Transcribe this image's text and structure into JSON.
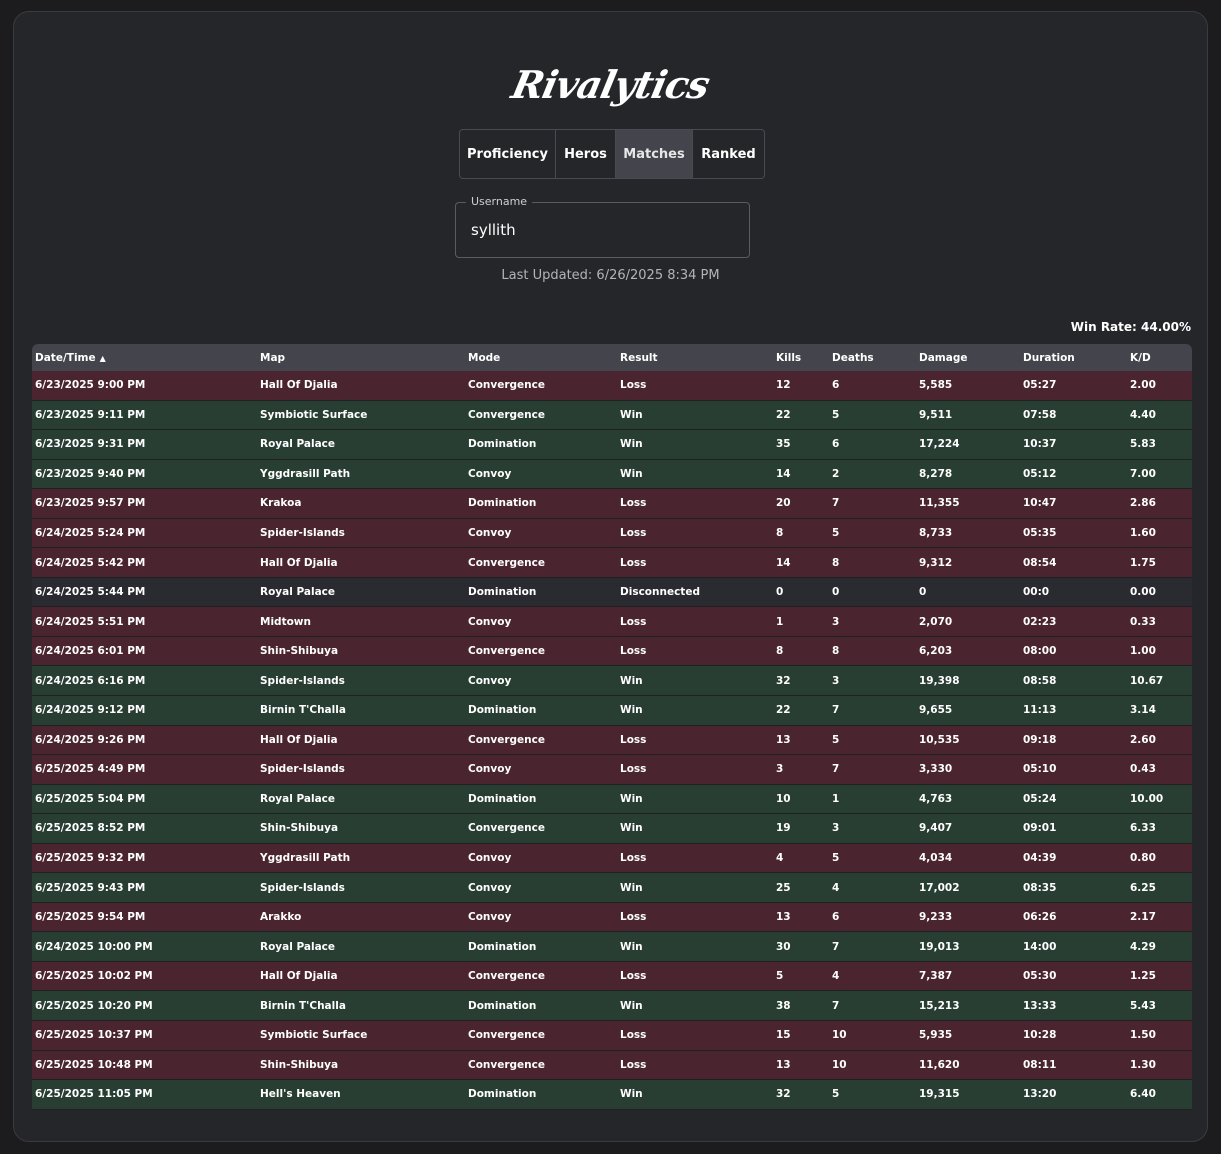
{
  "app": {
    "logo": "Rivalytics"
  },
  "tabs": [
    {
      "label": "Proficiency",
      "active": false
    },
    {
      "label": "Heros",
      "active": false
    },
    {
      "label": "Matches",
      "active": true
    },
    {
      "label": "Ranked",
      "active": false
    }
  ],
  "username": {
    "label": "Username",
    "value": "syllith"
  },
  "last_updated": "Last Updated: 6/26/2025 8:34 PM",
  "win_rate": "Win Rate: 44.00%",
  "table": {
    "headers": [
      "Date/Time",
      "Map",
      "Mode",
      "Result",
      "Kills",
      "Deaths",
      "Damage",
      "Duration",
      "K/D"
    ],
    "sort_indicator": "▲",
    "rows": [
      [
        "6/23/2025 9:00 PM",
        "Hall Of Djalia",
        "Convergence",
        "Loss",
        "12",
        "6",
        "5,585",
        "05:27",
        "2.00"
      ],
      [
        "6/23/2025 9:11 PM",
        "Symbiotic Surface",
        "Convergence",
        "Win",
        "22",
        "5",
        "9,511",
        "07:58",
        "4.40"
      ],
      [
        "6/23/2025 9:31 PM",
        "Royal Palace",
        "Domination",
        "Win",
        "35",
        "6",
        "17,224",
        "10:37",
        "5.83"
      ],
      [
        "6/23/2025 9:40 PM",
        "Yggdrasill Path",
        "Convoy",
        "Win",
        "14",
        "2",
        "8,278",
        "05:12",
        "7.00"
      ],
      [
        "6/23/2025 9:57 PM",
        "Krakoa",
        "Domination",
        "Loss",
        "20",
        "7",
        "11,355",
        "10:47",
        "2.86"
      ],
      [
        "6/24/2025 5:24 PM",
        "Spider-Islands",
        "Convoy",
        "Loss",
        "8",
        "5",
        "8,733",
        "05:35",
        "1.60"
      ],
      [
        "6/24/2025 5:42 PM",
        "Hall Of Djalia",
        "Convergence",
        "Loss",
        "14",
        "8",
        "9,312",
        "08:54",
        "1.75"
      ],
      [
        "6/24/2025 5:44 PM",
        "Royal Palace",
        "Domination",
        "Disconnected",
        "0",
        "0",
        "0",
        "00:0",
        "0.00"
      ],
      [
        "6/24/2025 5:51 PM",
        "Midtown",
        "Convoy",
        "Loss",
        "1",
        "3",
        "2,070",
        "02:23",
        "0.33"
      ],
      [
        "6/24/2025 6:01 PM",
        "Shin-Shibuya",
        "Convergence",
        "Loss",
        "8",
        "8",
        "6,203",
        "08:00",
        "1.00"
      ],
      [
        "6/24/2025 6:16 PM",
        "Spider-Islands",
        "Convoy",
        "Win",
        "32",
        "3",
        "19,398",
        "08:58",
        "10.67"
      ],
      [
        "6/24/2025 9:12 PM",
        "Birnin T'Challa",
        "Domination",
        "Win",
        "22",
        "7",
        "9,655",
        "11:13",
        "3.14"
      ],
      [
        "6/24/2025 9:26 PM",
        "Hall Of Djalia",
        "Convergence",
        "Loss",
        "13",
        "5",
        "10,535",
        "09:18",
        "2.60"
      ],
      [
        "6/25/2025 4:49 PM",
        "Spider-Islands",
        "Convoy",
        "Loss",
        "3",
        "7",
        "3,330",
        "05:10",
        "0.43"
      ],
      [
        "6/25/2025 5:04 PM",
        "Royal Palace",
        "Domination",
        "Win",
        "10",
        "1",
        "4,763",
        "05:24",
        "10.00"
      ],
      [
        "6/25/2025 8:52 PM",
        "Shin-Shibuya",
        "Convergence",
        "Win",
        "19",
        "3",
        "9,407",
        "09:01",
        "6.33"
      ],
      [
        "6/25/2025 9:32 PM",
        "Yggdrasill Path",
        "Convoy",
        "Loss",
        "4",
        "5",
        "4,034",
        "04:39",
        "0.80"
      ],
      [
        "6/25/2025 9:43 PM",
        "Spider-Islands",
        "Convoy",
        "Win",
        "25",
        "4",
        "17,002",
        "08:35",
        "6.25"
      ],
      [
        "6/25/2025 9:54 PM",
        "Arakko",
        "Convoy",
        "Loss",
        "13",
        "6",
        "9,233",
        "06:26",
        "2.17"
      ],
      [
        "6/24/2025 10:00 PM",
        "Royal Palace",
        "Domination",
        "Win",
        "30",
        "7",
        "19,013",
        "14:00",
        "4.29"
      ],
      [
        "6/25/2025 10:02 PM",
        "Hall Of Djalia",
        "Convergence",
        "Loss",
        "5",
        "4",
        "7,387",
        "05:30",
        "1.25"
      ],
      [
        "6/25/2025 10:20 PM",
        "Birnin T'Challa",
        "Domination",
        "Win",
        "38",
        "7",
        "15,213",
        "13:33",
        "5.43"
      ],
      [
        "6/25/2025 10:37 PM",
        "Symbiotic Surface",
        "Convergence",
        "Loss",
        "15",
        "10",
        "5,935",
        "10:28",
        "1.50"
      ],
      [
        "6/25/2025 10:48 PM",
        "Shin-Shibuya",
        "Convergence",
        "Loss",
        "13",
        "10",
        "11,620",
        "08:11",
        "1.30"
      ],
      [
        "6/25/2025 11:05 PM",
        "Hell's Heaven",
        "Domination",
        "Win",
        "32",
        "5",
        "19,315",
        "13:20",
        "6.40"
      ]
    ]
  },
  "colors": {
    "win_row": "#283e33",
    "loss_row": "#4a2530",
    "disconnected_row": "#2a2b30",
    "header_row": "#44454c"
  }
}
